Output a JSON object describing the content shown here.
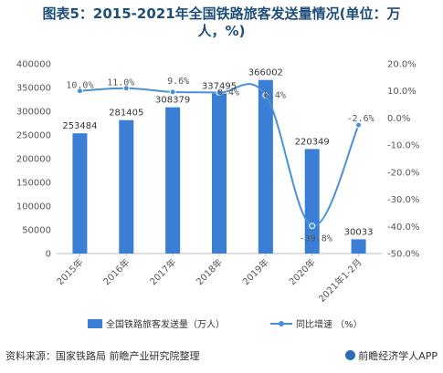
{
  "title_line1": "图表5：2015-2021年全国铁路旅客发送量情况(单位：万",
  "title_line2": "人，%)",
  "footer": {
    "source": "资料来源：国家铁路局 前瞻产业研究院整理",
    "brand": "前瞻经济学人APP"
  },
  "colors": {
    "bar": "#3a7fd5",
    "line": "#4a90d9",
    "title": "#1f4e79",
    "axis": "#bfbfbf"
  },
  "chart_data": {
    "type": "bar",
    "categories": [
      "2015年",
      "2016年",
      "2017年",
      "2018年",
      "2019年",
      "2020年",
      "2021年1-2月"
    ],
    "series": [
      {
        "name": "全国铁路旅客发送量（万人）",
        "type": "bar",
        "axis": "left",
        "values": [
          253484,
          281405,
          308379,
          337495,
          366002,
          220349,
          30033
        ],
        "labels": [
          "253484",
          "281405",
          "308379",
          "337495",
          "366002",
          "220349",
          "30033"
        ]
      },
      {
        "name": "同比增速 （%）",
        "type": "line",
        "axis": "right",
        "values": [
          10.0,
          11.0,
          9.6,
          9.4,
          8.4,
          -39.8,
          -2.6
        ],
        "labels": [
          "10.0%",
          "11.0%",
          "9.6%",
          "9.4%",
          "8.4%",
          "-39.8%",
          "-2.6%"
        ]
      }
    ],
    "left_axis": {
      "ylim": [
        0,
        400000
      ],
      "ticks": [
        "0",
        "50000",
        "100000",
        "150000",
        "200000",
        "250000",
        "300000",
        "350000",
        "400000"
      ]
    },
    "right_axis": {
      "ylim": [
        -50,
        20
      ],
      "ticks": [
        "-50.0%",
        "-40.0%",
        "-30.0%",
        "-20.0%",
        "-10.0%",
        "0.0%",
        "10.0%",
        "20.0%"
      ]
    },
    "legend_position": "bottom",
    "grid": false
  }
}
